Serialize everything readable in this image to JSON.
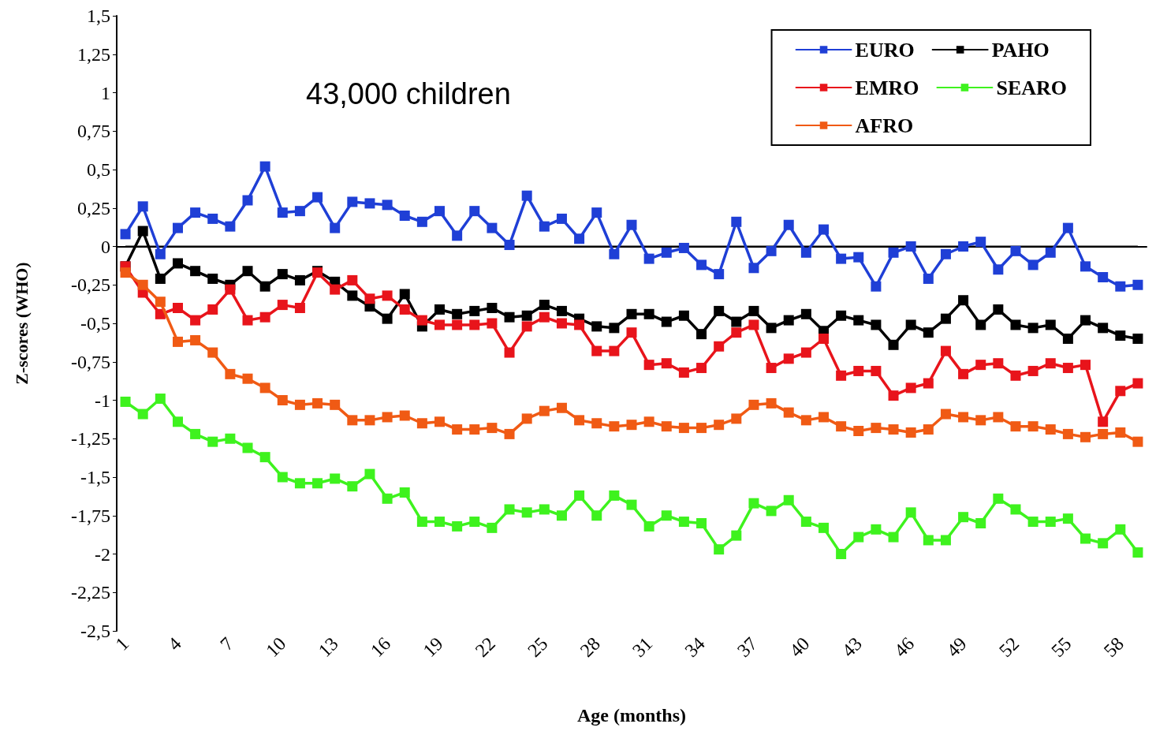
{
  "chart_data": {
    "type": "line",
    "xlabel": "Age (months)",
    "ylabel": "Z-scores (WHO)",
    "annotations": [
      "43,000 children"
    ],
    "categories": [
      "1",
      null,
      null,
      "4",
      null,
      null,
      "7",
      null,
      null,
      "10",
      null,
      null,
      "13",
      null,
      null,
      "16",
      null,
      null,
      "19",
      null,
      null,
      "22",
      null,
      null,
      "25",
      null,
      null,
      "28",
      null,
      null,
      "31",
      null,
      null,
      "34",
      null,
      null,
      "37",
      null,
      null,
      "40",
      null,
      null,
      "43",
      null,
      null,
      "46",
      null,
      null,
      "49",
      null,
      null,
      "52",
      null,
      null,
      "55",
      null,
      null,
      "58",
      null
    ],
    "ylim": [
      -2.5,
      1.5
    ],
    "yticks": [
      {
        "value": 1.5,
        "label": "1,5"
      },
      {
        "value": 1.25,
        "label": "1,25"
      },
      1,
      {
        "value": 0.75,
        "label": "0,75"
      },
      {
        "value": 0.5,
        "label": "0,5"
      },
      {
        "value": 0.25,
        "label": "0,25"
      },
      0,
      {
        "value": -0.25,
        "label": "-0,25"
      },
      {
        "value": -0.5,
        "label": "-0,5"
      },
      {
        "value": -0.75,
        "label": "-0,75"
      },
      -1,
      {
        "value": -1.25,
        "label": "-1,25"
      },
      {
        "value": -1.5,
        "label": "-1,5"
      },
      {
        "value": -1.75,
        "label": "-1,75"
      },
      -2,
      {
        "value": -2.25,
        "label": "-2,25"
      },
      {
        "value": -2.5,
        "label": "-2,5"
      }
    ],
    "ref_lines": [
      {
        "axis": "y",
        "value": 0,
        "color": "#000000"
      }
    ],
    "grid": false,
    "legend": "top right",
    "marker": "square",
    "line_style": "solid",
    "series": [
      {
        "name": "EURO",
        "color": "#1f3fd6",
        "values": [
          0.08,
          0.26,
          -0.05,
          0.12,
          0.22,
          0.18,
          0.13,
          0.3,
          0.52,
          0.22,
          0.23,
          0.32,
          0.12,
          0.29,
          0.28,
          0.27,
          0.2,
          0.16,
          0.23,
          0.07,
          0.23,
          0.12,
          0.01,
          0.33,
          0.13,
          0.18,
          0.05,
          0.22,
          -0.05,
          0.14,
          -0.08,
          -0.04,
          -0.01,
          -0.12,
          -0.18,
          0.16,
          -0.14,
          -0.03,
          0.14,
          -0.04,
          0.11,
          -0.08,
          -0.07,
          -0.26,
          -0.04,
          0,
          -0.21,
          -0.05,
          0,
          0.03,
          -0.15,
          -0.03,
          -0.12,
          -0.04,
          0.12,
          -0.13,
          -0.2,
          -0.26,
          -0.25
        ]
      },
      {
        "name": "PAHO",
        "color": "#000000",
        "values": [
          -0.13,
          0.1,
          -0.21,
          -0.11,
          -0.16,
          -0.21,
          -0.25,
          -0.16,
          -0.26,
          -0.18,
          -0.22,
          -0.16,
          -0.23,
          -0.32,
          -0.39,
          -0.47,
          -0.31,
          -0.52,
          -0.41,
          -0.44,
          -0.42,
          -0.4,
          -0.46,
          -0.45,
          -0.38,
          -0.42,
          -0.47,
          -0.52,
          -0.53,
          -0.44,
          -0.44,
          -0.49,
          -0.45,
          -0.57,
          -0.42,
          -0.49,
          -0.42,
          -0.53,
          -0.48,
          -0.44,
          -0.55,
          -0.45,
          -0.48,
          -0.51,
          -0.64,
          -0.51,
          -0.56,
          -0.47,
          -0.35,
          -0.51,
          -0.41,
          -0.51,
          -0.53,
          -0.51,
          -0.6,
          -0.48,
          -0.53,
          -0.58,
          -0.6
        ]
      },
      {
        "name": "EMRO",
        "color": "#e8141b",
        "values": [
          -0.13,
          -0.3,
          -0.44,
          -0.4,
          -0.48,
          -0.41,
          -0.28,
          -0.48,
          -0.46,
          -0.38,
          -0.4,
          -0.17,
          -0.28,
          -0.22,
          -0.34,
          -0.32,
          -0.41,
          -0.48,
          -0.51,
          -0.51,
          -0.51,
          -0.5,
          -0.69,
          -0.52,
          -0.46,
          -0.5,
          -0.51,
          -0.68,
          -0.68,
          -0.56,
          -0.77,
          -0.76,
          -0.82,
          -0.79,
          -0.65,
          -0.56,
          -0.51,
          -0.79,
          -0.73,
          -0.69,
          -0.6,
          -0.84,
          -0.81,
          -0.81,
          -0.97,
          -0.92,
          -0.89,
          -0.68,
          -0.83,
          -0.77,
          -0.76,
          -0.84,
          -0.81,
          -0.76,
          -0.79,
          -0.77,
          -1.14,
          -0.94,
          -0.89
        ]
      },
      {
        "name": "SEARO",
        "color": "#3ef21e",
        "values": [
          -1.01,
          -1.09,
          -0.99,
          -1.14,
          -1.22,
          -1.27,
          -1.25,
          -1.31,
          -1.37,
          -1.5,
          -1.54,
          -1.54,
          -1.51,
          -1.56,
          -1.48,
          -1.64,
          -1.6,
          -1.79,
          -1.79,
          -1.82,
          -1.79,
          -1.83,
          -1.71,
          -1.73,
          -1.71,
          -1.75,
          -1.62,
          -1.75,
          -1.62,
          -1.68,
          -1.82,
          -1.75,
          -1.79,
          -1.8,
          -1.97,
          -1.88,
          -1.67,
          -1.72,
          -1.65,
          -1.79,
          -1.83,
          -2.0,
          -1.89,
          -1.84,
          -1.89,
          -1.73,
          -1.91,
          -1.91,
          -1.76,
          -1.8,
          -1.64,
          -1.71,
          -1.79,
          -1.79,
          -1.77,
          -1.9,
          -1.93,
          -1.84,
          -1.99
        ]
      },
      {
        "name": "AFRO",
        "color": "#f05a14",
        "values": [
          -0.17,
          -0.25,
          -0.36,
          -0.62,
          -0.61,
          -0.69,
          -0.83,
          -0.86,
          -0.92,
          -1.0,
          -1.03,
          -1.02,
          -1.03,
          -1.13,
          -1.13,
          -1.11,
          -1.1,
          -1.15,
          -1.14,
          -1.19,
          -1.19,
          -1.18,
          -1.22,
          -1.12,
          -1.07,
          -1.05,
          -1.13,
          -1.15,
          -1.17,
          -1.16,
          -1.14,
          -1.17,
          -1.18,
          -1.18,
          -1.16,
          -1.12,
          -1.03,
          -1.02,
          -1.08,
          -1.13,
          -1.11,
          -1.17,
          -1.2,
          -1.18,
          -1.19,
          -1.21,
          -1.19,
          -1.09,
          -1.11,
          -1.13,
          -1.11,
          -1.17,
          -1.17,
          -1.19,
          -1.22,
          -1.24,
          -1.22,
          -1.21,
          -1.27
        ]
      }
    ]
  }
}
